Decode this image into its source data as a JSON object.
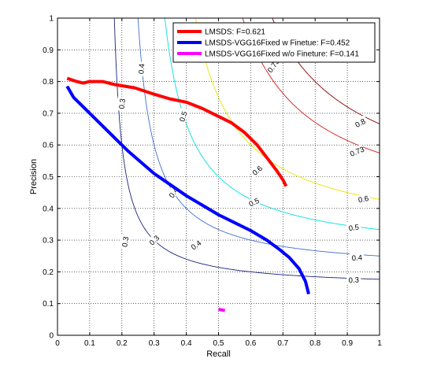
{
  "chart_data": {
    "type": "line",
    "xlabel": "Recall",
    "ylabel": "Precision",
    "xlim": [
      0,
      1
    ],
    "ylim": [
      0,
      1
    ],
    "grid": true,
    "legend_position": "top-right",
    "xticks": [
      "0",
      "0.1",
      "0.2",
      "0.3",
      "0.4",
      "0.5",
      "0.6",
      "0.7",
      "0.8",
      "0.9",
      "1"
    ],
    "yticks": [
      "0",
      "0.1",
      "0.2",
      "0.3",
      "0.4",
      "0.5",
      "0.6",
      "0.7",
      "0.8",
      "0.9",
      "1"
    ],
    "iso_f_contours": [
      {
        "f": 0.3,
        "label": "0.3",
        "color": "#1a237e",
        "label_points": [
          [
            0.2,
            0.73
          ],
          [
            0.3,
            0.3
          ],
          [
            0.92,
            0.175
          ],
          [
            0.21,
            0.295
          ]
        ]
      },
      {
        "f": 0.4,
        "label": "0.4",
        "color": "#3f6fd1",
        "label_points": [
          [
            0.26,
            0.84
          ],
          [
            0.36,
            0.45
          ],
          [
            0.43,
            0.285
          ],
          [
            0.93,
            0.245
          ]
        ]
      },
      {
        "f": 0.5,
        "label": "0.5",
        "color": "#00e0e0",
        "label_points": [
          [
            0.39,
            0.69
          ],
          [
            0.61,
            0.42
          ],
          [
            0.92,
            0.34
          ]
        ]
      },
      {
        "f": 0.6,
        "label": "0.6",
        "color": "#e6e600",
        "label_points": [
          [
            0.62,
            0.52
          ],
          [
            0.95,
            0.43
          ]
        ]
      },
      {
        "f": 0.73,
        "label": "0.73",
        "color": "#d11a1a",
        "label_points": [
          [
            0.67,
            0.85
          ],
          [
            0.93,
            0.58
          ]
        ]
      },
      {
        "f": 0.8,
        "label": "0.8",
        "color": "#8b0000",
        "label_points": [
          [
            0.94,
            0.67
          ]
        ]
      }
    ],
    "series": [
      {
        "name": "LMSDS: F=0.621",
        "color": "#ff0000",
        "points": [
          [
            0.03,
            0.81
          ],
          [
            0.06,
            0.8
          ],
          [
            0.08,
            0.795
          ],
          [
            0.1,
            0.8
          ],
          [
            0.14,
            0.8
          ],
          [
            0.18,
            0.79
          ],
          [
            0.24,
            0.78
          ],
          [
            0.3,
            0.76
          ],
          [
            0.35,
            0.745
          ],
          [
            0.4,
            0.735
          ],
          [
            0.45,
            0.715
          ],
          [
            0.5,
            0.69
          ],
          [
            0.54,
            0.67
          ],
          [
            0.58,
            0.64
          ],
          [
            0.62,
            0.6
          ],
          [
            0.65,
            0.56
          ],
          [
            0.68,
            0.52
          ],
          [
            0.7,
            0.49
          ],
          [
            0.71,
            0.47
          ]
        ]
      },
      {
        "name": "LMSDS-VGG16Fixed w Finetue: F=0.452",
        "color": "#0000ff",
        "points": [
          [
            0.03,
            0.785
          ],
          [
            0.05,
            0.75
          ],
          [
            0.08,
            0.72
          ],
          [
            0.11,
            0.69
          ],
          [
            0.14,
            0.66
          ],
          [
            0.18,
            0.62
          ],
          [
            0.22,
            0.58
          ],
          [
            0.26,
            0.545
          ],
          [
            0.3,
            0.51
          ],
          [
            0.35,
            0.475
          ],
          [
            0.4,
            0.44
          ],
          [
            0.45,
            0.41
          ],
          [
            0.5,
            0.38
          ],
          [
            0.55,
            0.355
          ],
          [
            0.6,
            0.33
          ],
          [
            0.65,
            0.3
          ],
          [
            0.69,
            0.27
          ],
          [
            0.72,
            0.245
          ],
          [
            0.75,
            0.21
          ],
          [
            0.77,
            0.17
          ],
          [
            0.78,
            0.13
          ]
        ]
      },
      {
        "name": "LMSDS-VGG16Fixed w/o Fineture: F=0.141",
        "color": "#ff00ff",
        "points": [
          [
            0.5,
            0.082
          ],
          [
            0.52,
            0.078
          ]
        ]
      }
    ]
  }
}
